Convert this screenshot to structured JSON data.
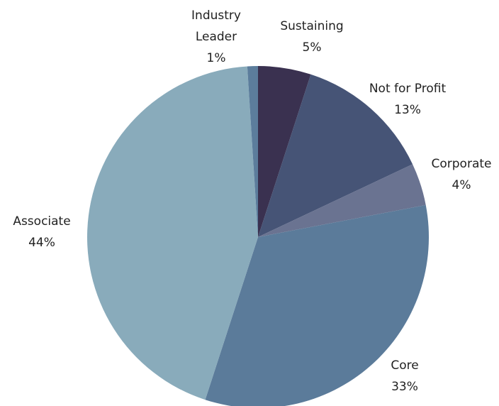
{
  "chart_data": {
    "type": "pie",
    "categories": [
      "Sustaining",
      "Not for Profit",
      "Corporate",
      "Core",
      "Associate",
      "Industry Leader"
    ],
    "values": [
      5,
      13,
      4,
      33,
      44,
      1
    ],
    "value_labels": [
      "5%",
      "13%",
      "4%",
      "33%",
      "44%",
      "1%"
    ],
    "colors": [
      "#3a3150",
      "#465476",
      "#6a7391",
      "#5b7b9a",
      "#89abbb",
      "#5c7d9c"
    ]
  }
}
